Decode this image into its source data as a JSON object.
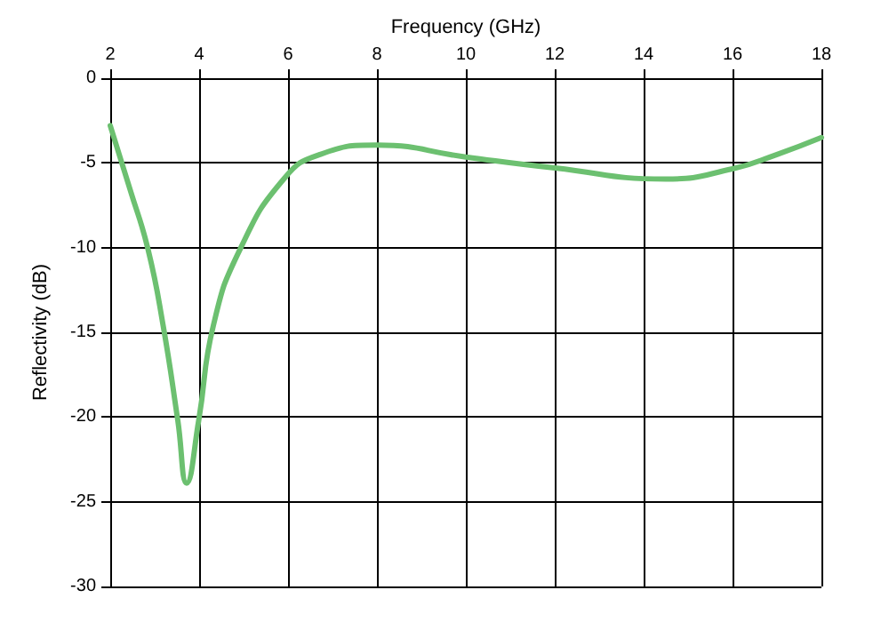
{
  "chart_data": {
    "type": "line",
    "xlabel": "Frequency (GHz)",
    "ylabel": "Reflectivity (dB)",
    "xlim": [
      2,
      18
    ],
    "xticks": [
      2,
      4,
      6,
      8,
      10,
      12,
      14,
      16,
      18
    ],
    "ylim": [
      -30,
      0
    ],
    "yticks": [
      -30,
      -25,
      -20,
      -15,
      -10,
      -5,
      0
    ],
    "grid": true,
    "marker": "none",
    "line_style": "solid",
    "series": [
      {
        "color": "#6cc070",
        "x": [
          2,
          2.45,
          2.85,
          3.19,
          3.52,
          3.72,
          3.99,
          4.32,
          4.92,
          5.92,
          6.72,
          8,
          10,
          12,
          14.5,
          16,
          17,
          18
        ],
        "values": [
          -2.8,
          -6.6,
          -10.1,
          -14.6,
          -20.2,
          -23.9,
          -20.2,
          -14.6,
          -10.1,
          -5.9,
          -4.5,
          -3.95,
          -4.65,
          -5.3,
          -5.95,
          -5.35,
          -4.5,
          -3.5
        ]
      }
    ]
  }
}
